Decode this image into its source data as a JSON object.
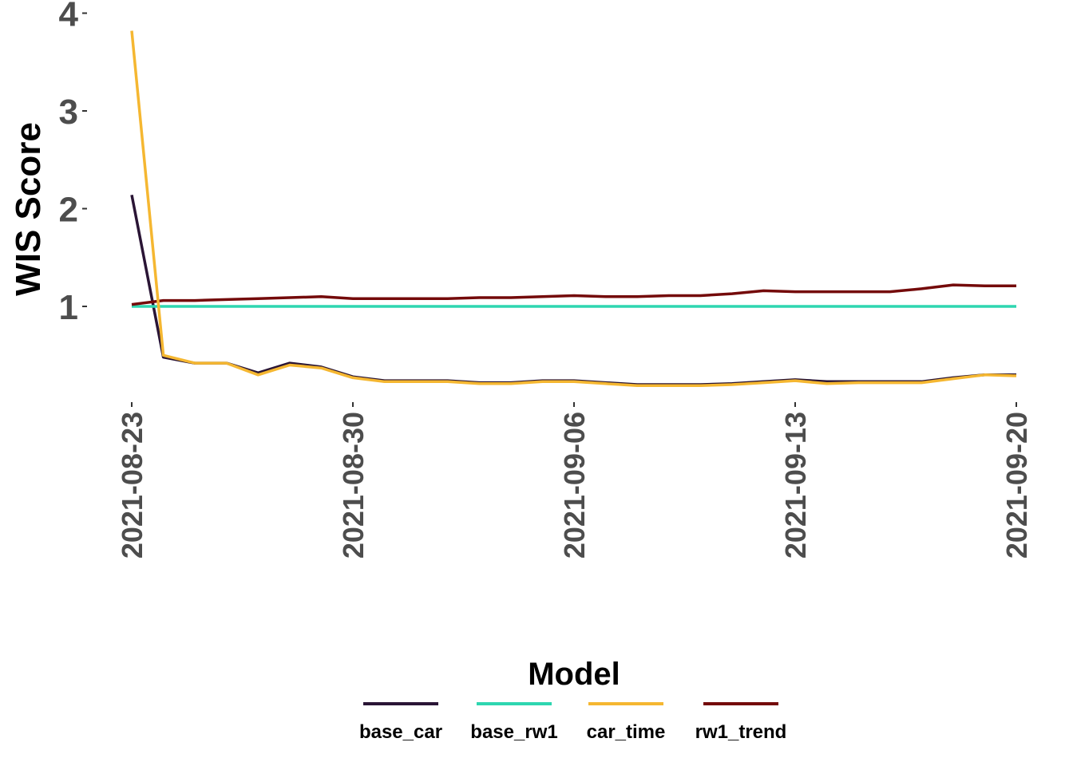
{
  "chart_data": {
    "type": "line",
    "ylabel": "WIS Score",
    "xlabel": "",
    "ylim": [
      0.05,
      4.0
    ],
    "yticks": [
      1,
      2,
      3,
      4
    ],
    "xticks": [
      "2021-08-23",
      "2021-08-30",
      "2021-09-06",
      "2021-09-13",
      "2021-09-20"
    ],
    "grid": false,
    "legend": {
      "title": "Model",
      "position": "bottom"
    },
    "x": [
      "2021-08-23",
      "2021-08-24",
      "2021-08-25",
      "2021-08-26",
      "2021-08-27",
      "2021-08-28",
      "2021-08-29",
      "2021-08-30",
      "2021-08-31",
      "2021-09-01",
      "2021-09-02",
      "2021-09-03",
      "2021-09-04",
      "2021-09-05",
      "2021-09-06",
      "2021-09-07",
      "2021-09-08",
      "2021-09-09",
      "2021-09-10",
      "2021-09-11",
      "2021-09-12",
      "2021-09-13",
      "2021-09-14",
      "2021-09-15",
      "2021-09-16",
      "2021-09-17",
      "2021-09-18",
      "2021-09-19",
      "2021-09-20"
    ],
    "series": [
      {
        "name": "base_car",
        "color": "#2a1535",
        "values": [
          2.14,
          0.48,
          0.42,
          0.42,
          0.32,
          0.42,
          0.38,
          0.28,
          0.24,
          0.24,
          0.24,
          0.22,
          0.22,
          0.24,
          0.24,
          0.22,
          0.2,
          0.2,
          0.2,
          0.21,
          0.23,
          0.25,
          0.23,
          0.23,
          0.23,
          0.23,
          0.27,
          0.3,
          0.3
        ]
      },
      {
        "name": "base_rw1",
        "color": "#2ed6b0",
        "values": [
          1,
          1,
          1,
          1,
          1,
          1,
          1,
          1,
          1,
          1,
          1,
          1,
          1,
          1,
          1,
          1,
          1,
          1,
          1,
          1,
          1,
          1,
          1,
          1,
          1,
          1,
          1,
          1,
          1
        ]
      },
      {
        "name": "car_time",
        "color": "#f5b731",
        "values": [
          3.82,
          0.5,
          0.42,
          0.42,
          0.3,
          0.4,
          0.37,
          0.27,
          0.23,
          0.23,
          0.23,
          0.21,
          0.21,
          0.23,
          0.23,
          0.21,
          0.19,
          0.19,
          0.19,
          0.2,
          0.22,
          0.24,
          0.21,
          0.22,
          0.22,
          0.22,
          0.26,
          0.3,
          0.29
        ]
      },
      {
        "name": "rw1_trend",
        "color": "#740a0a",
        "values": [
          1.02,
          1.06,
          1.06,
          1.07,
          1.08,
          1.09,
          1.1,
          1.08,
          1.08,
          1.08,
          1.08,
          1.09,
          1.09,
          1.1,
          1.11,
          1.1,
          1.1,
          1.11,
          1.11,
          1.13,
          1.16,
          1.15,
          1.15,
          1.15,
          1.15,
          1.18,
          1.22,
          1.21,
          1.21
        ]
      }
    ]
  }
}
